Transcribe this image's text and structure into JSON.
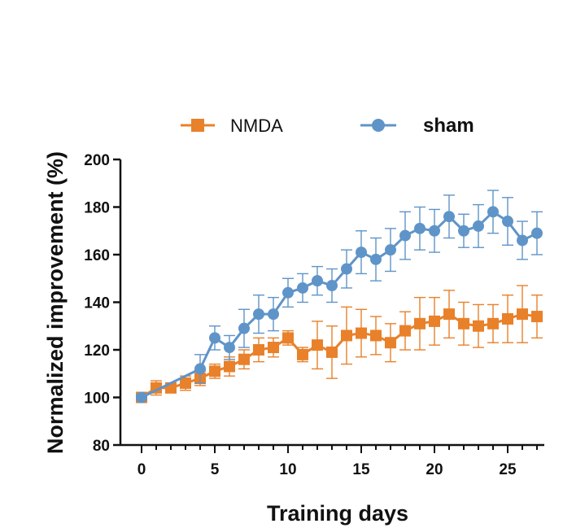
{
  "chart_data": {
    "type": "line",
    "title": "",
    "xlabel": "Training days",
    "ylabel": "Normalized improvement (%)",
    "xlim": [
      -1,
      27.5
    ],
    "ylim": [
      80,
      200
    ],
    "xticks": [
      0,
      5,
      10,
      15,
      20,
      25
    ],
    "yticks": [
      80,
      100,
      120,
      140,
      160,
      180,
      200
    ],
    "x_tick_labels": [
      "0",
      "5",
      "10",
      "15",
      "20",
      "25"
    ],
    "y_tick_labels": [
      "80",
      "100",
      "120",
      "140",
      "160",
      "180",
      "200"
    ],
    "grid": false,
    "legend": "top",
    "series": [
      {
        "name": "NMDA",
        "color": "#E8812A",
        "marker": "square",
        "x": [
          0,
          1,
          2,
          3,
          4,
          5,
          6,
          7,
          8,
          9,
          10,
          11,
          12,
          13,
          14,
          15,
          16,
          17,
          18,
          19,
          20,
          21,
          22,
          23,
          24,
          25,
          26,
          27
        ],
        "y": [
          100,
          104,
          104,
          106,
          108,
          111,
          113,
          116,
          120,
          121,
          125,
          118,
          122,
          119,
          126,
          127,
          126,
          123,
          128,
          131,
          132,
          135,
          131,
          130,
          131,
          133,
          135,
          134
        ],
        "err": [
          1,
          3,
          2,
          3,
          3,
          3,
          4,
          4,
          5,
          4,
          3,
          3,
          10,
          11,
          12,
          10,
          8,
          8,
          8,
          11,
          10,
          10,
          9,
          9,
          8,
          10,
          12,
          9
        ]
      },
      {
        "name": "sham",
        "color": "#5F94C8",
        "marker": "circle",
        "x": [
          0,
          4,
          5,
          6,
          7,
          8,
          9,
          10,
          11,
          12,
          13,
          14,
          15,
          16,
          17,
          18,
          19,
          20,
          21,
          22,
          23,
          24,
          25,
          26,
          27
        ],
        "y": [
          100,
          112,
          125,
          121,
          129,
          135,
          135,
          144,
          146,
          149,
          147,
          154,
          161,
          158,
          162,
          168,
          171,
          170,
          176,
          170,
          172,
          178,
          174,
          166,
          169
        ],
        "err": [
          1,
          6,
          5,
          5,
          8,
          8,
          7,
          6,
          6,
          6,
          7,
          8,
          9,
          9,
          9,
          10,
          9,
          9,
          9,
          7,
          9,
          9,
          10,
          8,
          9
        ]
      }
    ]
  }
}
